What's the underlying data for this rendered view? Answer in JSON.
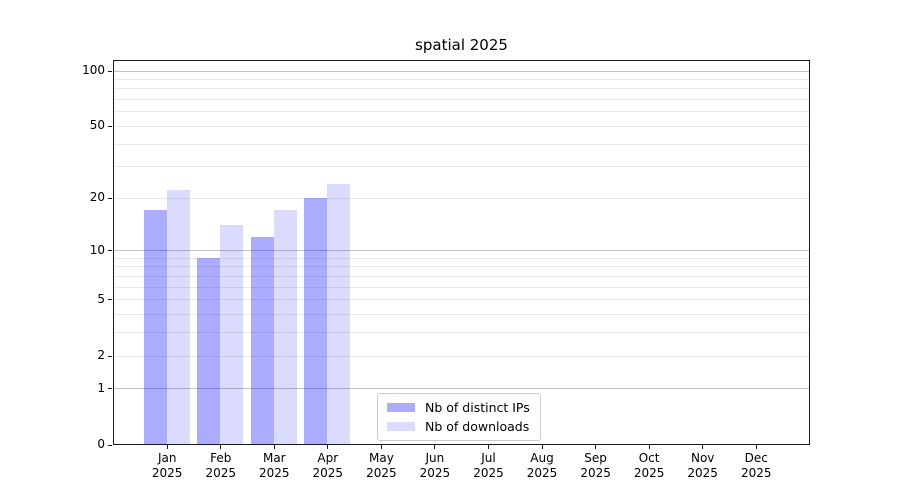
{
  "title": "spatial 2025",
  "chart_data": {
    "type": "bar",
    "title": "spatial 2025",
    "x_axis": {
      "months": [
        "Jan",
        "Feb",
        "Mar",
        "Apr",
        "May",
        "Jun",
        "Jul",
        "Aug",
        "Sep",
        "Oct",
        "Nov",
        "Dec"
      ],
      "year": "2025"
    },
    "y_axis": {
      "scale": "log1p",
      "tick_values": [
        0,
        1,
        2,
        5,
        10,
        20,
        50,
        100
      ],
      "major_gridlines": [
        1,
        10,
        100
      ],
      "minor_gridlines": [
        2,
        3,
        4,
        5,
        6,
        7,
        8,
        9,
        20,
        30,
        40,
        50,
        60,
        70,
        80,
        90
      ],
      "ylim": [
        0,
        117
      ]
    },
    "series": [
      {
        "name": "Nb of distinct IPs",
        "color": "rgba(0,0,255,0.33)",
        "values": [
          17,
          9,
          12,
          20,
          0,
          0,
          0,
          0,
          0,
          0,
          0,
          0
        ]
      },
      {
        "name": "Nb of downloads",
        "color": "rgba(0,0,255,0.14)",
        "values": [
          22,
          14,
          17,
          24,
          0,
          0,
          0,
          0,
          0,
          0,
          0,
          0
        ]
      }
    ],
    "legend": {
      "position": "inside-lower-center",
      "labels": [
        "Nb of distinct IPs",
        "Nb of downloads"
      ]
    }
  },
  "colors": {
    "background": "#ffffff",
    "bar_distinct_ips": "rgba(0,0,255,0.33)",
    "bar_downloads": "rgba(0,0,255,0.14)",
    "major_grid": "#c3c3c3",
    "minor_grid": "#e9e9e9",
    "spine": "#1a1a1a",
    "text": "#000000"
  }
}
